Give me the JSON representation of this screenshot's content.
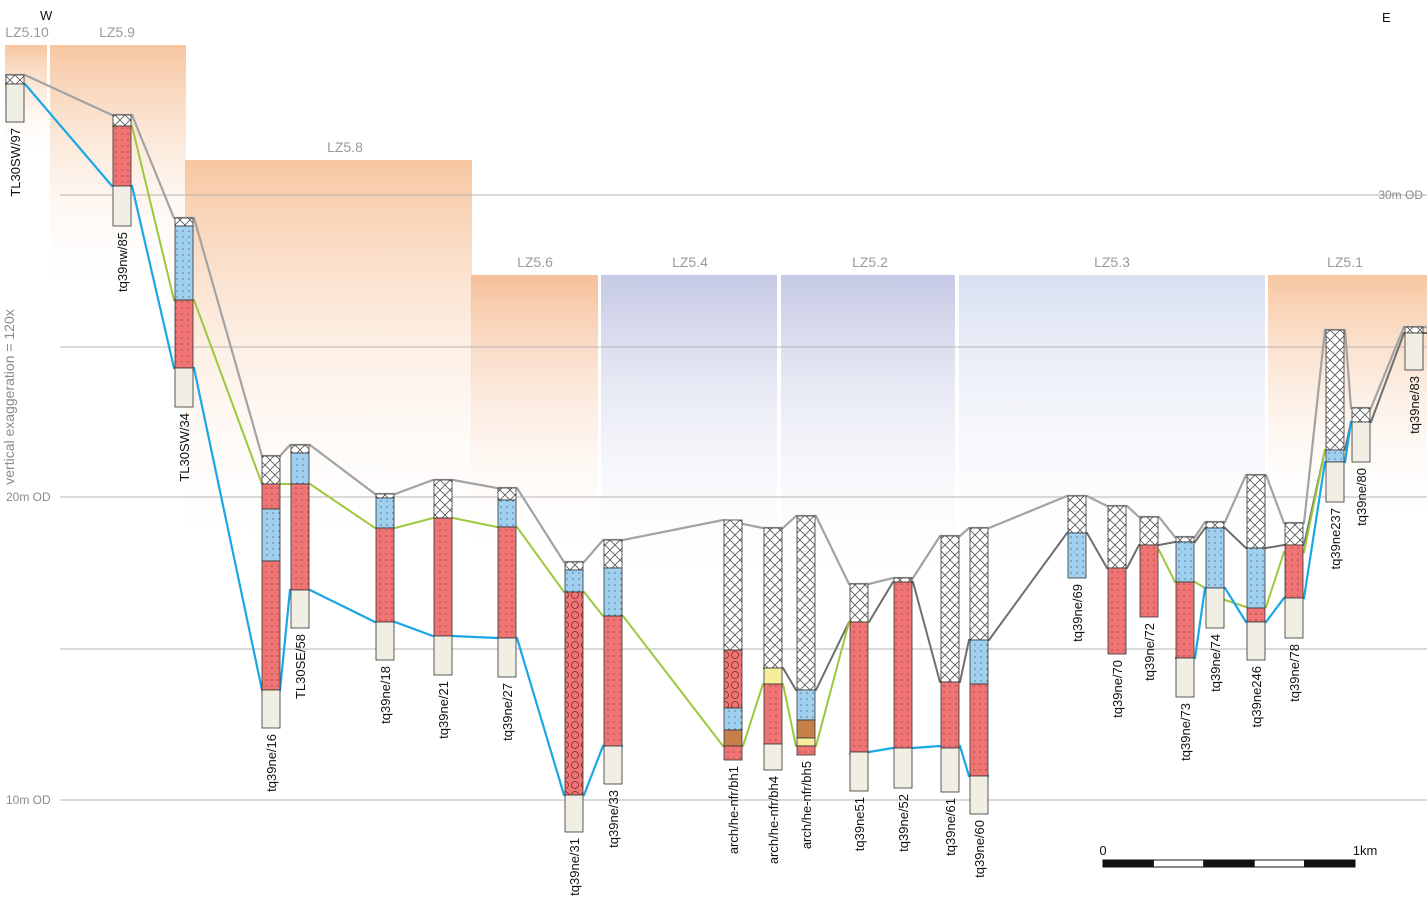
{
  "header": {
    "west": "W",
    "east": "E"
  },
  "zones": [
    "LZ5.10",
    "LZ5.9",
    "LZ5.8",
    "LZ5.6",
    "LZ5.4",
    "LZ5.2",
    "LZ5.3",
    "LZ5.1"
  ],
  "elevation_labels": [
    "30m OD",
    "20m OD",
    "10m OD"
  ],
  "vertical_exaggeration": "vertical exaggeration = 120x",
  "boreholes": [
    "TL30SW/97",
    "tq39nw/85",
    "TL30SW/34",
    "tq39ne/16",
    "TL30SE/58",
    "tq39ne/18",
    "tq39ne/21",
    "tq39ne/27",
    "tq39ne/31",
    "tq39ne/33",
    "arch/he-nfr/bh1",
    "arch/he-nfr/bh4",
    "arch/he-nfr/bh5",
    "tq39ne51",
    "tq39ne/52",
    "tq39ne/61",
    "tq39ne/60",
    "tq39ne/69",
    "tq39ne/70",
    "tq39ne/72",
    "tq39ne/73",
    "tq39ne/74",
    "tq39ne246",
    "tq39ne/78",
    "tq39ne237",
    "tq39ne/80",
    "tq39ne/83"
  ],
  "scale": {
    "start": "0",
    "end": "1km"
  }
}
